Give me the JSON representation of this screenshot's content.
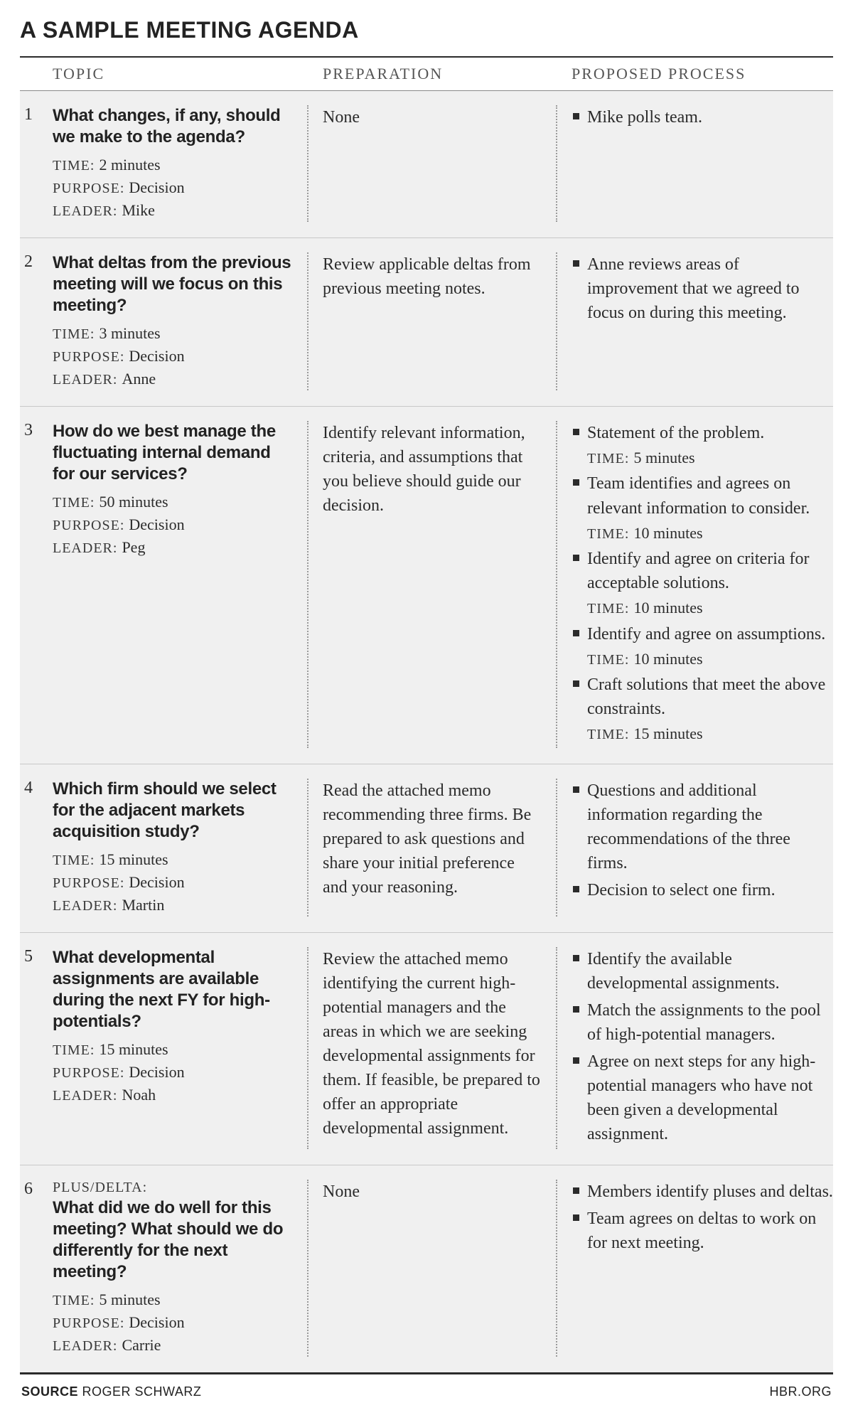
{
  "title": "A SAMPLE MEETING AGENDA",
  "columns": {
    "topic": "TOPIC",
    "preparation": "PREPARATION",
    "process": "PROPOSED PROCESS"
  },
  "meta_labels": {
    "time": "TIME:",
    "purpose": "PURPOSE:",
    "leader": "LEADER:"
  },
  "footer": {
    "source_label": "SOURCE",
    "source_name": "ROGER SCHWARZ",
    "site": "HBR.ORG"
  },
  "style": {
    "background": "#ffffff",
    "row_background": "#f0f0f0",
    "text_color": "#2b2b2b",
    "muted_text": "#555555",
    "rule_color": "#2b2b2b",
    "row_border": "#c8c8c8",
    "dotted_sep": "#9a9a9a",
    "bullet_color": "#2b2b2b",
    "widths": {
      "num": 46,
      "topic": 360,
      "prep": 350
    },
    "title_fontsize": 32,
    "header_fontsize": 22,
    "question_fontsize": 24,
    "body_fontsize": 24
  },
  "rows": [
    {
      "n": "1",
      "pretitle": "",
      "question": "What changes, if any, should we make to the agenda?",
      "time": "2 minutes",
      "purpose": "Decision",
      "leader": "Mike",
      "preparation": "None",
      "process": [
        {
          "text": "Mike polls team.",
          "time": ""
        }
      ]
    },
    {
      "n": "2",
      "pretitle": "",
      "question": "What deltas from the previous meeting will we focus on this meeting?",
      "time": "3 minutes",
      "purpose": "Decision",
      "leader": "Anne",
      "preparation": "Review applicable deltas from previous meeting notes.",
      "process": [
        {
          "text": "Anne reviews areas of improvement that we agreed to focus on during this meeting.",
          "time": ""
        }
      ]
    },
    {
      "n": "3",
      "pretitle": "",
      "question": "How do we best manage the fluctuating internal demand for our services?",
      "time": "50 minutes",
      "purpose": "Decision",
      "leader": "Peg",
      "preparation": "Identify relevant information, criteria, and assumptions that you believe should guide our decision.",
      "process": [
        {
          "text": "Statement of the problem.",
          "time": "5 minutes"
        },
        {
          "text": "Team identifies and agrees on relevant information to consider.",
          "time": "10 minutes"
        },
        {
          "text": "Identify and agree on criteria for acceptable solutions.",
          "time": "10 minutes"
        },
        {
          "text": "Identify and agree on assumptions.",
          "time": "10 minutes"
        },
        {
          "text": "Craft solutions that meet the above constraints.",
          "time": "15 minutes"
        }
      ]
    },
    {
      "n": "4",
      "pretitle": "",
      "question": "Which firm should we select for the adjacent markets acquisition study?",
      "time": "15 minutes",
      "purpose": "Decision",
      "leader": "Martin",
      "preparation": "Read the attached memo recommending three firms. Be prepared to ask questions and share your initial preference and your reasoning.",
      "process": [
        {
          "text": "Questions and additional information regarding the recommendations of the three firms.",
          "time": ""
        },
        {
          "text": "Decision to select one firm.",
          "time": ""
        }
      ]
    },
    {
      "n": "5",
      "pretitle": "",
      "question": "What developmental assignments are available during the next FY for high-potentials?",
      "time": "15 minutes",
      "purpose": "Decision",
      "leader": "Noah",
      "preparation": "Review the attached memo identifying the current high-potential managers and the areas in which we are seeking developmental assign­ments for them. If feasible, be prepared to offer an appropriate developmen­tal assignment.",
      "process": [
        {
          "text": "Identify the available developmental assignments.",
          "time": ""
        },
        {
          "text": "Match the assignments to the pool of high-potential managers.",
          "time": ""
        },
        {
          "text": "Agree on next steps for any high-potential managers who have not been given a developmental assignment.",
          "time": ""
        }
      ]
    },
    {
      "n": "6",
      "pretitle": "PLUS/DELTA:",
      "question": "What did we do well for this meeting? What should we do differently for the next meeting?",
      "time": "5 minutes",
      "purpose": "Decision",
      "leader": "Carrie",
      "preparation": "None",
      "process": [
        {
          "text": "Members identify pluses and deltas.",
          "time": ""
        },
        {
          "text": "Team agrees on deltas to work on for next meeting.",
          "time": ""
        }
      ]
    }
  ]
}
